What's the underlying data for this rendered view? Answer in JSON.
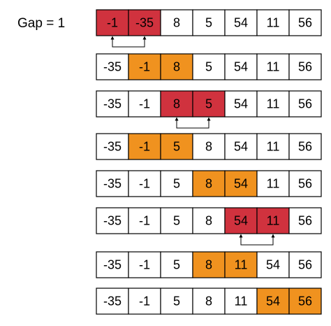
{
  "label": "Gap = 1",
  "colors": {
    "swap": "#d0323e",
    "compare": "#f0921f",
    "normal": "#ffffff",
    "border": "#000000",
    "arrow": "#000000"
  },
  "rows": [
    {
      "values": [
        "-1",
        "-35",
        "8",
        "5",
        "54",
        "11",
        "56"
      ],
      "highlight": [
        0,
        1
      ],
      "state": "swap",
      "arrow": true
    },
    {
      "values": [
        "-35",
        "-1",
        "8",
        "5",
        "54",
        "11",
        "56"
      ],
      "highlight": [
        1,
        2
      ],
      "state": "compare",
      "arrow": false
    },
    {
      "values": [
        "-35",
        "-1",
        "8",
        "5",
        "54",
        "11",
        "56"
      ],
      "highlight": [
        2,
        3
      ],
      "state": "swap",
      "arrow": true
    },
    {
      "values": [
        "-35",
        "-1",
        "5",
        "8",
        "54",
        "11",
        "56"
      ],
      "highlight": [
        1,
        2
      ],
      "state": "compare",
      "arrow": false
    },
    {
      "values": [
        "-35",
        "-1",
        "5",
        "8",
        "54",
        "11",
        "56"
      ],
      "highlight": [
        3,
        4
      ],
      "state": "compare",
      "arrow": false
    },
    {
      "values": [
        "-35",
        "-1",
        "5",
        "8",
        "54",
        "11",
        "56"
      ],
      "highlight": [
        4,
        5
      ],
      "state": "swap",
      "arrow": true
    },
    {
      "values": [
        "-35",
        "-1",
        "5",
        "8",
        "11",
        "54",
        "56"
      ],
      "highlight": [
        3,
        4
      ],
      "state": "compare",
      "arrow": false
    },
    {
      "values": [
        "-35",
        "-1",
        "5",
        "8",
        "11",
        "54",
        "56"
      ],
      "highlight": [
        5,
        6
      ],
      "state": "compare",
      "arrow": false
    }
  ]
}
